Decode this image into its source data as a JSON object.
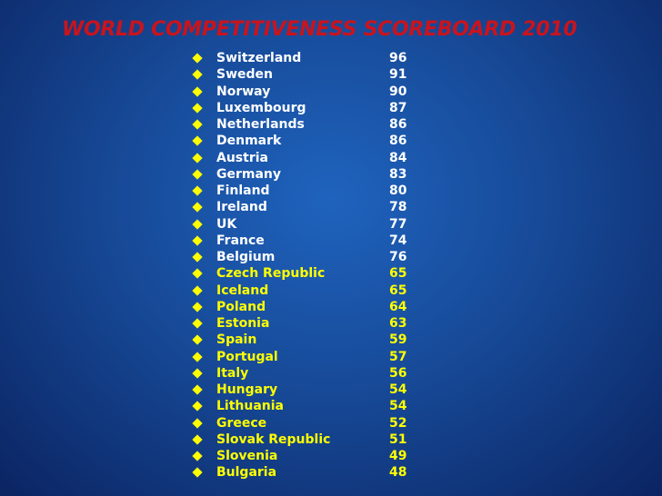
{
  "title": "WORLD COMPETITIVENESS SCOREBOARD 2010",
  "list": {
    "groups": [
      {
        "color": "#ffffff",
        "items": [
          {
            "name": "Switzerland",
            "score": 96
          },
          {
            "name": "Sweden",
            "score": 91
          },
          {
            "name": "Norway",
            "score": 90
          },
          {
            "name": "Luxembourg",
            "score": 87
          },
          {
            "name": "Netherlands",
            "score": 86
          },
          {
            "name": "Denmark",
            "score": 86
          },
          {
            "name": "Austria",
            "score": 84
          },
          {
            "name": "Germany",
            "score": 83
          },
          {
            "name": "Finland",
            "score": 80
          },
          {
            "name": "Ireland",
            "score": 78
          },
          {
            "name": "UK",
            "score": 77
          },
          {
            "name": "France",
            "score": 74
          },
          {
            "name": "Belgium",
            "score": 76
          }
        ]
      },
      {
        "color": "#ffff00",
        "items": [
          {
            "name": "Czech Republic",
            "score": 65
          },
          {
            "name": "Iceland",
            "score": 65
          },
          {
            "name": "Poland",
            "score": 64
          },
          {
            "name": "Estonia",
            "score": 63
          },
          {
            "name": "Spain",
            "score": 59
          },
          {
            "name": "Portugal",
            "score": 57
          },
          {
            "name": "Italy",
            "score": 56
          },
          {
            "name": "Hungary",
            "score": 54
          },
          {
            "name": "Lithuania",
            "score": 54
          },
          {
            "name": "Greece",
            "score": 52
          },
          {
            "name": "Slovak Republic",
            "score": 51
          },
          {
            "name": "Slovenia",
            "score": 49
          },
          {
            "name": "Bulgaria",
            "score": 48
          }
        ]
      }
    ]
  }
}
